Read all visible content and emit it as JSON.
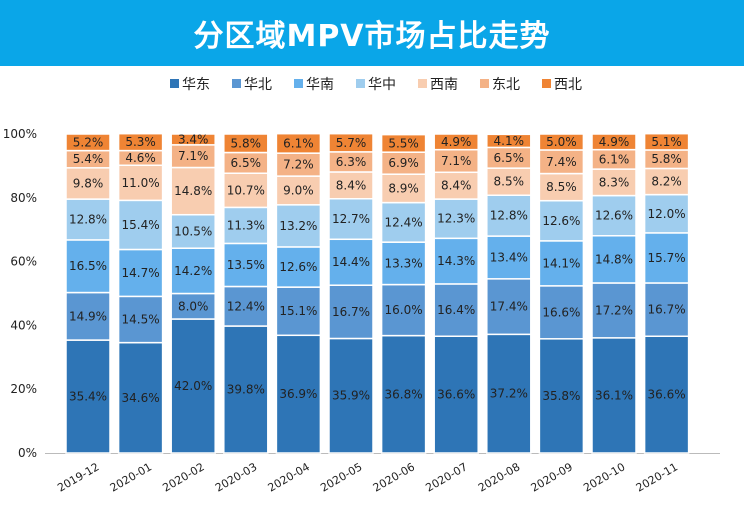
{
  "chart_data": {
    "type": "bar",
    "stacked": true,
    "title": "分区域MPV市场占比走势",
    "categories": [
      "2019-12",
      "2020-01",
      "2020-02",
      "2020-03",
      "2020-04",
      "2020-05",
      "2020-06",
      "2020-07",
      "2020-08",
      "2020-09",
      "2020-10",
      "2020-11"
    ],
    "series": [
      {
        "name": "华东",
        "color": "#2e75b6",
        "values": [
          35.4,
          34.6,
          42.0,
          39.8,
          36.9,
          35.9,
          36.8,
          36.6,
          37.2,
          35.8,
          36.1,
          36.6
        ]
      },
      {
        "name": "华北",
        "color": "#5a96d2",
        "values": [
          14.9,
          14.5,
          8.0,
          12.4,
          15.1,
          16.7,
          16.0,
          16.4,
          17.4,
          16.6,
          17.2,
          16.7
        ]
      },
      {
        "name": "华南",
        "color": "#64b0ec",
        "values": [
          16.5,
          14.7,
          14.2,
          13.5,
          12.6,
          14.4,
          13.3,
          14.3,
          13.4,
          14.1,
          14.8,
          15.7
        ]
      },
      {
        "name": "华中",
        "color": "#9fcdee",
        "values": [
          12.8,
          15.4,
          10.5,
          11.3,
          13.2,
          12.7,
          12.4,
          12.3,
          12.8,
          12.6,
          12.6,
          12.0
        ]
      },
      {
        "name": "西南",
        "color": "#f8cdb0",
        "values": [
          9.8,
          11.0,
          14.8,
          10.7,
          9.0,
          8.4,
          8.9,
          8.4,
          8.5,
          8.5,
          8.3,
          8.2
        ]
      },
      {
        "name": "东北",
        "color": "#f4b286",
        "values": [
          5.4,
          4.6,
          7.1,
          6.5,
          7.2,
          6.3,
          6.9,
          7.1,
          6.5,
          7.4,
          6.1,
          5.8
        ]
      },
      {
        "name": "西北",
        "color": "#ef8434",
        "values": [
          5.2,
          5.3,
          3.4,
          5.8,
          6.1,
          5.7,
          5.5,
          4.9,
          4.1,
          5.0,
          4.9,
          5.1
        ]
      }
    ],
    "yticks": [
      "0%",
      "20%",
      "40%",
      "60%",
      "80%",
      "100%"
    ],
    "ylim": [
      0,
      100
    ],
    "grid": false,
    "legend": "top",
    "data_label_suffix": "%"
  }
}
